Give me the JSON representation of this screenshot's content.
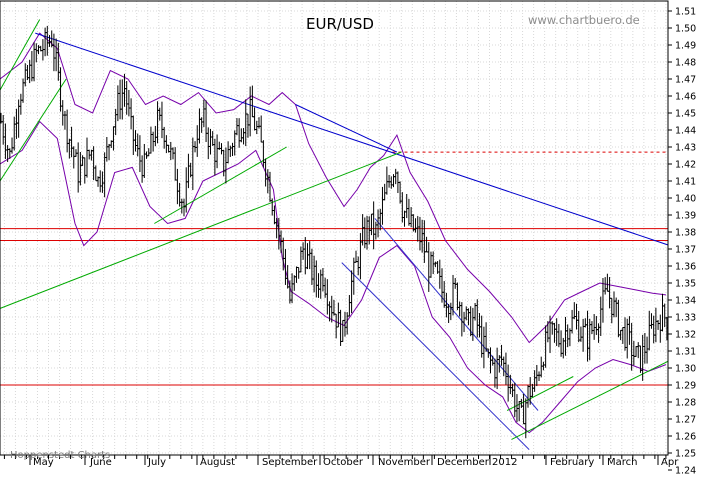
{
  "chart_data": {
    "type": "candlestick",
    "title": "EUR/USD",
    "watermark": "www.chartbuero.de",
    "credit": "Hoppenstedt Charts",
    "ylim": [
      1.24,
      1.51
    ],
    "y_ticks": [
      "1.24",
      "1.25",
      "1.26",
      "1.27",
      "1.28",
      "1.29",
      "1.30",
      "1.31",
      "1.32",
      "1.33",
      "1.34",
      "1.35",
      "1.36",
      "1.37",
      "1.38",
      "1.39",
      "1.40",
      "1.41",
      "1.42",
      "1.43",
      "1.44",
      "1.45",
      "1.46",
      "1.47",
      "1.48",
      "1.49",
      "1.50",
      "1.51"
    ],
    "x_months": [
      "May",
      "June",
      "July",
      "August",
      "September",
      "October",
      "November",
      "December",
      "2012",
      "February",
      "March",
      "Apr"
    ],
    "grid": true,
    "series_path": [
      [
        0,
        1.445
      ],
      [
        4,
        1.425
      ],
      [
        8,
        1.46
      ],
      [
        12,
        1.47
      ],
      [
        16,
        1.485
      ],
      [
        20,
        1.49
      ],
      [
        23,
        1.494
      ],
      [
        26,
        1.47
      ],
      [
        29,
        1.445
      ],
      [
        32,
        1.43
      ],
      [
        35,
        1.415
      ],
      [
        38,
        1.42
      ],
      [
        41,
        1.428
      ],
      [
        44,
        1.41
      ],
      [
        47,
        1.42
      ],
      [
        50,
        1.44
      ],
      [
        53,
        1.455
      ],
      [
        56,
        1.465
      ],
      [
        59,
        1.44
      ],
      [
        62,
        1.425
      ],
      [
        65,
        1.418
      ],
      [
        68,
        1.43
      ],
      [
        71,
        1.445
      ],
      [
        74,
        1.44
      ],
      [
        77,
        1.425
      ],
      [
        80,
        1.41
      ],
      [
        83,
        1.395
      ],
      [
        86,
        1.42
      ],
      [
        89,
        1.44
      ],
      [
        92,
        1.445
      ],
      [
        95,
        1.432
      ],
      [
        98,
        1.425
      ],
      [
        101,
        1.42
      ],
      [
        104,
        1.43
      ],
      [
        107,
        1.44
      ],
      [
        110,
        1.445
      ],
      [
        113,
        1.45
      ],
      [
        116,
        1.44
      ],
      [
        119,
        1.425
      ],
      [
        122,
        1.405
      ],
      [
        125,
        1.385
      ],
      [
        128,
        1.365
      ],
      [
        131,
        1.34
      ],
      [
        134,
        1.355
      ],
      [
        137,
        1.37
      ],
      [
        140,
        1.36
      ],
      [
        143,
        1.35
      ],
      [
        146,
        1.355
      ],
      [
        149,
        1.34
      ],
      [
        152,
        1.33
      ],
      [
        155,
        1.32
      ],
      [
        158,
        1.345
      ],
      [
        161,
        1.36
      ],
      [
        164,
        1.375
      ],
      [
        167,
        1.385
      ],
      [
        170,
        1.38
      ],
      [
        173,
        1.395
      ],
      [
        176,
        1.41
      ],
      [
        179,
        1.42
      ],
      [
        182,
        1.395
      ],
      [
        185,
        1.385
      ],
      [
        188,
        1.38
      ],
      [
        191,
        1.375
      ],
      [
        194,
        1.36
      ],
      [
        197,
        1.355
      ],
      [
        200,
        1.345
      ],
      [
        203,
        1.34
      ],
      [
        206,
        1.345
      ],
      [
        209,
        1.335
      ],
      [
        212,
        1.325
      ],
      [
        215,
        1.33
      ],
      [
        218,
        1.315
      ],
      [
        221,
        1.305
      ],
      [
        224,
        1.3
      ],
      [
        227,
        1.305
      ],
      [
        230,
        1.295
      ],
      [
        233,
        1.28
      ],
      [
        236,
        1.27
      ],
      [
        239,
        1.285
      ],
      [
        242,
        1.29
      ],
      [
        245,
        1.305
      ],
      [
        248,
        1.318
      ],
      [
        251,
        1.32
      ],
      [
        254,
        1.315
      ],
      [
        257,
        1.325
      ],
      [
        260,
        1.328
      ],
      [
        263,
        1.322
      ],
      [
        266,
        1.318
      ],
      [
        269,
        1.325
      ],
      [
        272,
        1.335
      ],
      [
        275,
        1.345
      ],
      [
        278,
        1.335
      ],
      [
        281,
        1.322
      ],
      [
        284,
        1.318
      ],
      [
        287,
        1.308
      ],
      [
        290,
        1.305
      ],
      [
        293,
        1.315
      ],
      [
        296,
        1.325
      ],
      [
        299,
        1.33
      ],
      [
        302,
        1.33
      ]
    ],
    "bollinger_upper": [
      [
        0,
        1.47
      ],
      [
        10,
        1.48
      ],
      [
        18,
        1.497
      ],
      [
        26,
        1.488
      ],
      [
        34,
        1.455
      ],
      [
        42,
        1.45
      ],
      [
        50,
        1.475
      ],
      [
        58,
        1.47
      ],
      [
        66,
        1.455
      ],
      [
        74,
        1.46
      ],
      [
        82,
        1.455
      ],
      [
        90,
        1.462
      ],
      [
        98,
        1.45
      ],
      [
        106,
        1.452
      ],
      [
        114,
        1.46
      ],
      [
        122,
        1.455
      ],
      [
        128,
        1.462
      ],
      [
        134,
        1.455
      ],
      [
        140,
        1.432
      ],
      [
        148,
        1.412
      ],
      [
        156,
        1.395
      ],
      [
        162,
        1.405
      ],
      [
        168,
        1.418
      ],
      [
        174,
        1.425
      ],
      [
        180,
        1.437
      ],
      [
        186,
        1.415
      ],
      [
        194,
        1.398
      ],
      [
        202,
        1.375
      ],
      [
        212,
        1.358
      ],
      [
        222,
        1.345
      ],
      [
        232,
        1.33
      ],
      [
        240,
        1.315
      ],
      [
        248,
        1.325
      ],
      [
        256,
        1.34
      ],
      [
        264,
        1.345
      ],
      [
        272,
        1.35
      ],
      [
        280,
        1.348
      ],
      [
        288,
        1.346
      ],
      [
        296,
        1.344
      ],
      [
        302,
        1.343
      ]
    ],
    "bollinger_lower": [
      [
        0,
        1.42
      ],
      [
        10,
        1.428
      ],
      [
        18,
        1.445
      ],
      [
        26,
        1.435
      ],
      [
        34,
        1.385
      ],
      [
        38,
        1.372
      ],
      [
        44,
        1.38
      ],
      [
        52,
        1.415
      ],
      [
        60,
        1.418
      ],
      [
        68,
        1.395
      ],
      [
        76,
        1.385
      ],
      [
        84,
        1.388
      ],
      [
        92,
        1.41
      ],
      [
        100,
        1.415
      ],
      [
        108,
        1.42
      ],
      [
        116,
        1.428
      ],
      [
        124,
        1.405
      ],
      [
        128,
        1.365
      ],
      [
        132,
        1.345
      ],
      [
        140,
        1.338
      ],
      [
        148,
        1.33
      ],
      [
        156,
        1.325
      ],
      [
        164,
        1.34
      ],
      [
        172,
        1.365
      ],
      [
        180,
        1.372
      ],
      [
        188,
        1.36
      ],
      [
        196,
        1.33
      ],
      [
        204,
        1.318
      ],
      [
        212,
        1.3
      ],
      [
        220,
        1.29
      ],
      [
        228,
        1.283
      ],
      [
        234,
        1.268
      ],
      [
        240,
        1.262
      ],
      [
        246,
        1.268
      ],
      [
        254,
        1.28
      ],
      [
        262,
        1.292
      ],
      [
        270,
        1.3
      ],
      [
        278,
        1.305
      ],
      [
        286,
        1.302
      ],
      [
        294,
        1.298
      ],
      [
        302,
        1.302
      ]
    ],
    "trendlines": [
      {
        "color": "#0000cc",
        "from": [
          16,
          1.497
        ],
        "to": [
          320,
          1.365
        ]
      },
      {
        "color": "#0000cc",
        "from": [
          134,
          1.455
        ],
        "to": [
          180,
          1.427
        ]
      },
      {
        "color": "#3333cc",
        "from": [
          170,
          1.388
        ],
        "to": [
          244,
          1.275
        ]
      },
      {
        "color": "#3333cc",
        "from": [
          155,
          1.362
        ],
        "to": [
          240,
          1.252
        ]
      },
      {
        "color": "#00aa00",
        "from": [
          -10,
          1.33
        ],
        "to": [
          182,
          1.427
        ]
      },
      {
        "color": "#00aa00",
        "from": [
          232,
          1.258
        ],
        "to": [
          320,
          1.315
        ]
      },
      {
        "color": "#00aa00",
        "from": [
          -8,
          1.445
        ],
        "to": [
          18,
          1.505
        ]
      },
      {
        "color": "#00aa00",
        "from": [
          0,
          1.41
        ],
        "to": [
          30,
          1.47
        ]
      },
      {
        "color": "#00aa00",
        "from": [
          70,
          1.385
        ],
        "to": [
          130,
          1.43
        ]
      },
      {
        "color": "#00aa00",
        "from": [
          230,
          1.275
        ],
        "to": [
          260,
          1.295
        ]
      }
    ],
    "horizontal_lines": [
      {
        "value": 1.382,
        "color": "#dd0000",
        "style": "solid"
      },
      {
        "value": 1.375,
        "color": "#dd0000",
        "style": "solid"
      },
      {
        "value": 1.29,
        "color": "#dd0000",
        "style": "solid"
      },
      {
        "value": 1.427,
        "color": "#dd0000",
        "style": "dashed"
      }
    ],
    "colors": {
      "price": "#000000",
      "bollinger": "#7700aa",
      "resistance": "#dd0000",
      "grid": "#d8d8d8"
    }
  }
}
